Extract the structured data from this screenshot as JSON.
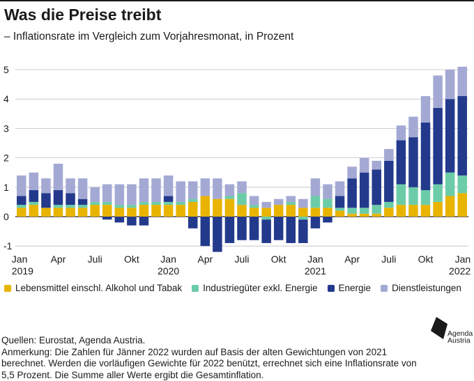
{
  "header": {
    "title": "Was die Preise treibt",
    "subtitle": "– Inflationsrate im Vergleich zum Vorjahresmonat, in Prozent"
  },
  "chart_data": {
    "type": "bar",
    "stacked": true,
    "ylim": [
      -1.2,
      5.2
    ],
    "yticks": [
      -1,
      0,
      1,
      2,
      3,
      4,
      5
    ],
    "ytick_labels": [
      "-1",
      "0",
      "1",
      "2",
      "3",
      "4",
      "5"
    ],
    "grid": true,
    "legend_position": "bottom",
    "categories": [
      "2019-01",
      "2019-02",
      "2019-03",
      "2019-04",
      "2019-05",
      "2019-06",
      "2019-07",
      "2019-08",
      "2019-09",
      "2019-10",
      "2019-11",
      "2019-12",
      "2020-01",
      "2020-02",
      "2020-03",
      "2020-04",
      "2020-05",
      "2020-06",
      "2020-07",
      "2020-08",
      "2020-09",
      "2020-10",
      "2020-11",
      "2020-12",
      "2021-01",
      "2021-02",
      "2021-03",
      "2021-04",
      "2021-05",
      "2021-06",
      "2021-07",
      "2021-08",
      "2021-09",
      "2021-10",
      "2021-11",
      "2021-12",
      "2022-01"
    ],
    "xtick_labels": [
      {
        "index": 0,
        "lines": [
          "Jan",
          "2019"
        ]
      },
      {
        "index": 3,
        "lines": [
          "Apr",
          ""
        ]
      },
      {
        "index": 6,
        "lines": [
          "Juli",
          ""
        ]
      },
      {
        "index": 9,
        "lines": [
          "Okt",
          ""
        ]
      },
      {
        "index": 12,
        "lines": [
          "Jan",
          "2020"
        ]
      },
      {
        "index": 15,
        "lines": [
          "Apr",
          ""
        ]
      },
      {
        "index": 18,
        "lines": [
          "Juli",
          ""
        ]
      },
      {
        "index": 21,
        "lines": [
          "Okt",
          ""
        ]
      },
      {
        "index": 24,
        "lines": [
          "Jan",
          "2021"
        ]
      },
      {
        "index": 27,
        "lines": [
          "Apr",
          ""
        ]
      },
      {
        "index": 30,
        "lines": [
          "Juli",
          ""
        ]
      },
      {
        "index": 33,
        "lines": [
          "Okt",
          ""
        ]
      },
      {
        "index": 36,
        "lines": [
          "Jan",
          "2022"
        ]
      }
    ],
    "series": [
      {
        "name": "Lebensmittel einschl. Alkohol und Tabak",
        "color": "#e8b400",
        "values": [
          0.3,
          0.4,
          0.3,
          0.3,
          0.3,
          0.3,
          0.4,
          0.4,
          0.3,
          0.3,
          0.4,
          0.4,
          0.4,
          0.4,
          0.5,
          0.7,
          0.6,
          0.6,
          0.4,
          0.3,
          0.3,
          0.4,
          0.4,
          0.3,
          0.3,
          0.3,
          0.2,
          0.1,
          0.1,
          0.1,
          0.3,
          0.4,
          0.4,
          0.4,
          0.5,
          0.7,
          0.8
        ]
      },
      {
        "name": "Industriegüter exkl. Energie",
        "color": "#6ccca8",
        "values": [
          0.1,
          0.1,
          0.0,
          0.1,
          0.1,
          0.1,
          0.1,
          0.1,
          0.1,
          0.1,
          0.1,
          0.1,
          0.1,
          0.1,
          0.1,
          0.0,
          0.0,
          0.1,
          0.4,
          0.1,
          -0.1,
          0.0,
          0.1,
          -0.1,
          0.4,
          0.3,
          0.1,
          0.2,
          0.2,
          0.3,
          0.2,
          0.7,
          0.6,
          0.5,
          0.6,
          0.8,
          0.6
        ]
      },
      {
        "name": "Energie",
        "color": "#233a8c",
        "values": [
          0.3,
          0.4,
          0.5,
          0.5,
          0.4,
          0.2,
          0.0,
          -0.1,
          -0.2,
          -0.3,
          -0.3,
          0.0,
          0.2,
          0.0,
          -0.4,
          -1.0,
          -1.2,
          -0.9,
          -0.8,
          -0.8,
          -0.8,
          -0.8,
          -0.9,
          -0.8,
          -0.4,
          -0.2,
          0.4,
          1.0,
          1.2,
          1.2,
          1.4,
          1.5,
          1.7,
          2.3,
          2.6,
          2.5,
          2.7
        ]
      },
      {
        "name": "Dienstleistungen",
        "color": "#a4a9d4",
        "values": [
          0.7,
          0.6,
          0.5,
          0.9,
          0.5,
          0.7,
          0.5,
          0.6,
          0.7,
          0.7,
          0.8,
          0.8,
          0.7,
          0.7,
          0.6,
          0.6,
          0.7,
          0.4,
          0.4,
          0.3,
          0.2,
          0.2,
          0.2,
          0.3,
          0.6,
          0.5,
          0.5,
          0.4,
          0.5,
          0.3,
          0.4,
          0.5,
          0.7,
          0.9,
          1.1,
          1.0,
          1.0
        ]
      }
    ]
  },
  "legend": {
    "items": [
      {
        "label": "Lebensmittel einschl. Alkohol und Tabak",
        "color": "#e8b400"
      },
      {
        "label": "Industriegüter exkl. Energie",
        "color": "#6ccca8"
      },
      {
        "label": "Energie",
        "color": "#233a8c"
      },
      {
        "label": "Dienstleistungen",
        "color": "#a4a9d4"
      }
    ]
  },
  "footer": {
    "sources": "Quellen: Eurostat, Agenda Austria.",
    "note": "Anmerkung: Die Zahlen für Jänner 2022 wurden auf Basis der alten Gewichtungen von 2021 berechnet. Werden die vorläufigen Gewichte für 2022 benützt, errechnet sich eine Inflationsrate von 5,5 Prozent. Die Summe aller Werte ergibt die Gesamtinflation.",
    "logo_line1": "Agenda",
    "logo_line2": "Austria"
  }
}
